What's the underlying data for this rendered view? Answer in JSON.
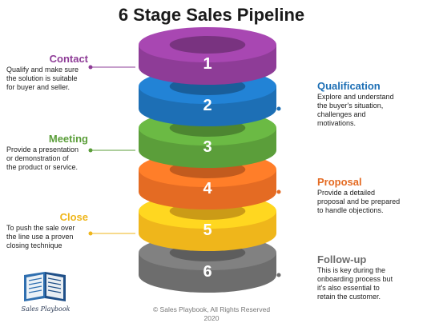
{
  "title": "6 Stage Sales Pipeline",
  "stages": [
    {
      "number": "1",
      "name": "Contact",
      "description_lines": [
        "Qualify and make sure",
        "the solution is suitable",
        "for buyer and seller."
      ],
      "color": "#8e3c97"
    },
    {
      "number": "2",
      "name": "Qualification",
      "description_lines": [
        "Explore and understand",
        "the buyer's situation,",
        "challenges and",
        "motivations."
      ],
      "color": "#1d6fb5"
    },
    {
      "number": "3",
      "name": "Meeting",
      "description_lines": [
        "Provide a presentation",
        "or demonstration of",
        "the product or service."
      ],
      "color": "#5b9e3a"
    },
    {
      "number": "4",
      "name": "Proposal",
      "description_lines": [
        "Provide a detailed",
        "proposal and be prepared",
        "to handle objections."
      ],
      "color": "#e46b23"
    },
    {
      "number": "5",
      "name": "Close",
      "description_lines": [
        "To push the sale over",
        "the line use a proven",
        "closing technique"
      ],
      "color": "#efb61b"
    },
    {
      "number": "6",
      "name": "Follow-up",
      "description_lines": [
        "This is key during the",
        "onboarding  process but",
        "it's also essential to",
        "retain the customer."
      ],
      "color": "#6d6d6d"
    }
  ],
  "logo": {
    "text": "Sales Playbook",
    "icon": "open-book-icon"
  },
  "footer": {
    "line1": "© Sales Playbook, All Rights Reserved",
    "line2": "2020"
  }
}
